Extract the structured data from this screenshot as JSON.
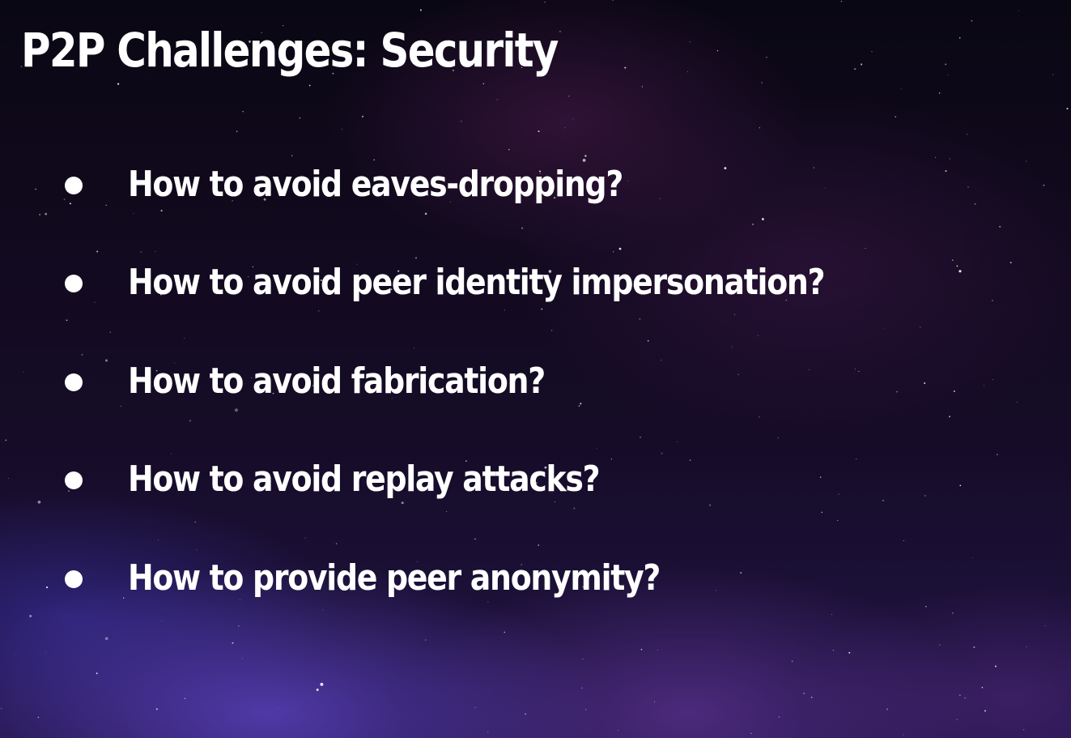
{
  "slide": {
    "title": "P2P Challenges: Security",
    "bullets": [
      "How to avoid eaves-dropping?",
      "How to avoid peer identity impersonation?",
      "How to avoid fabrication?",
      "How to avoid replay attacks?",
      "How to provide peer anonymity?"
    ]
  },
  "colors": {
    "text": "#ffffff",
    "background_top": "#0a0714",
    "background_bottom": "#221447",
    "nebula_accent": "#5f46c8"
  },
  "icons": {
    "bullet": "bullet-dot-icon",
    "background": "starfield-image"
  }
}
